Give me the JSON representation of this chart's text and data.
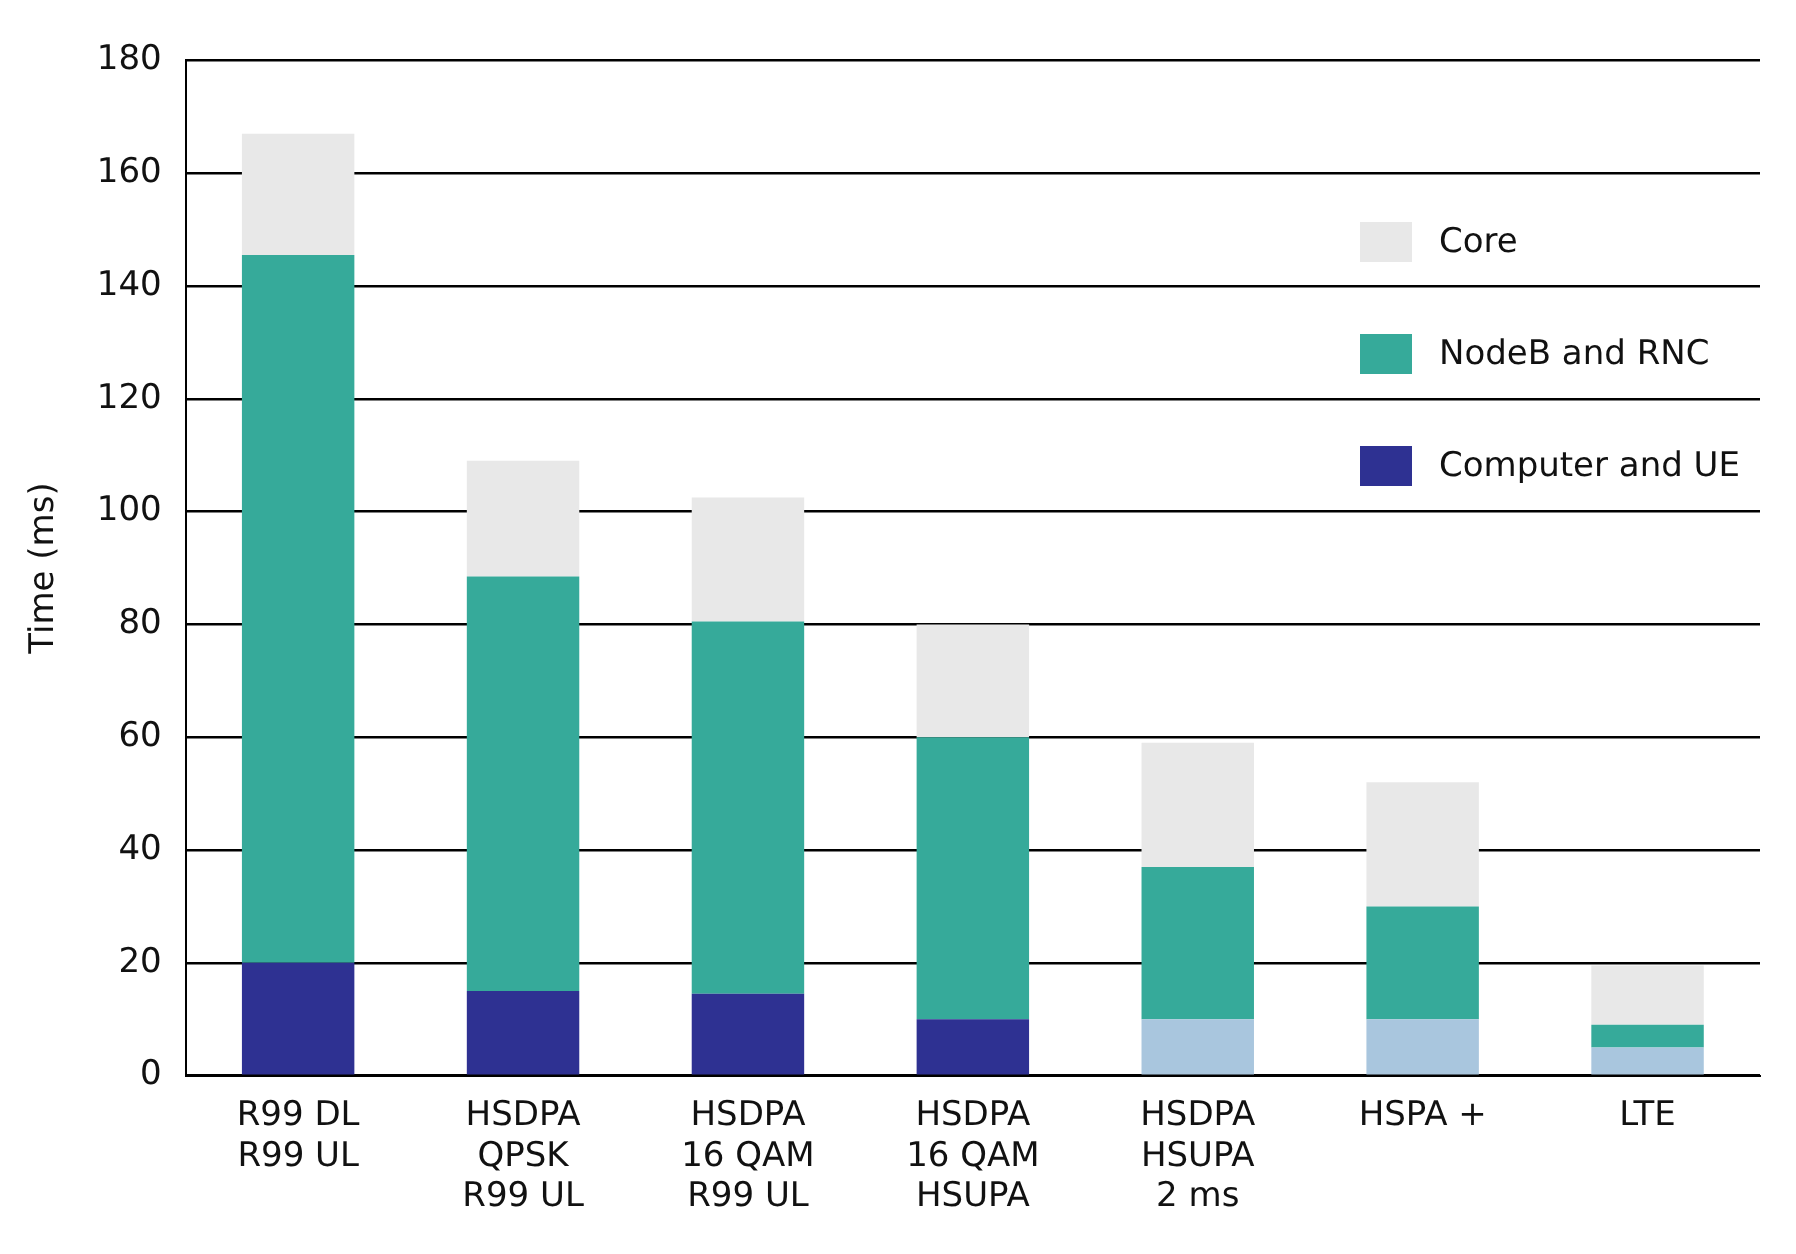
{
  "chart_data": {
    "type": "bar",
    "stacked": true,
    "ylabel": "Time (ms)",
    "categories": [
      "R99 DL\nR99 UL",
      "HSDPA\nQPSK\nR99 UL",
      "HSDPA\n16 QAM\nR99 UL",
      "HSDPA\n16 QAM\nHSUPA",
      "HSDPA\nHSUPA\n2 ms",
      "HSPA +",
      "LTE"
    ],
    "series": [
      {
        "name": "Computer and UE",
        "color": "#2e3192",
        "colors": [
          "#2e3192",
          "#2e3192",
          "#2e3192",
          "#2e3192",
          "#a9c6de",
          "#a9c6de",
          "#a9c6de"
        ],
        "values": [
          20,
          15,
          14.5,
          10,
          10,
          10,
          5
        ]
      },
      {
        "name": "NodeB and RNC",
        "color": "#36aa9a",
        "values": [
          125.5,
          73.5,
          66,
          50,
          27,
          20,
          4
        ]
      },
      {
        "name": "Core",
        "color": "#e8e8e8",
        "values": [
          21.5,
          20.5,
          22,
          20,
          22,
          22,
          10.5
        ]
      }
    ],
    "ylim": [
      0,
      180
    ],
    "yticks": [
      0,
      20,
      40,
      60,
      80,
      100,
      120,
      140,
      160,
      180
    ],
    "grid": "y",
    "legend": "top right"
  }
}
